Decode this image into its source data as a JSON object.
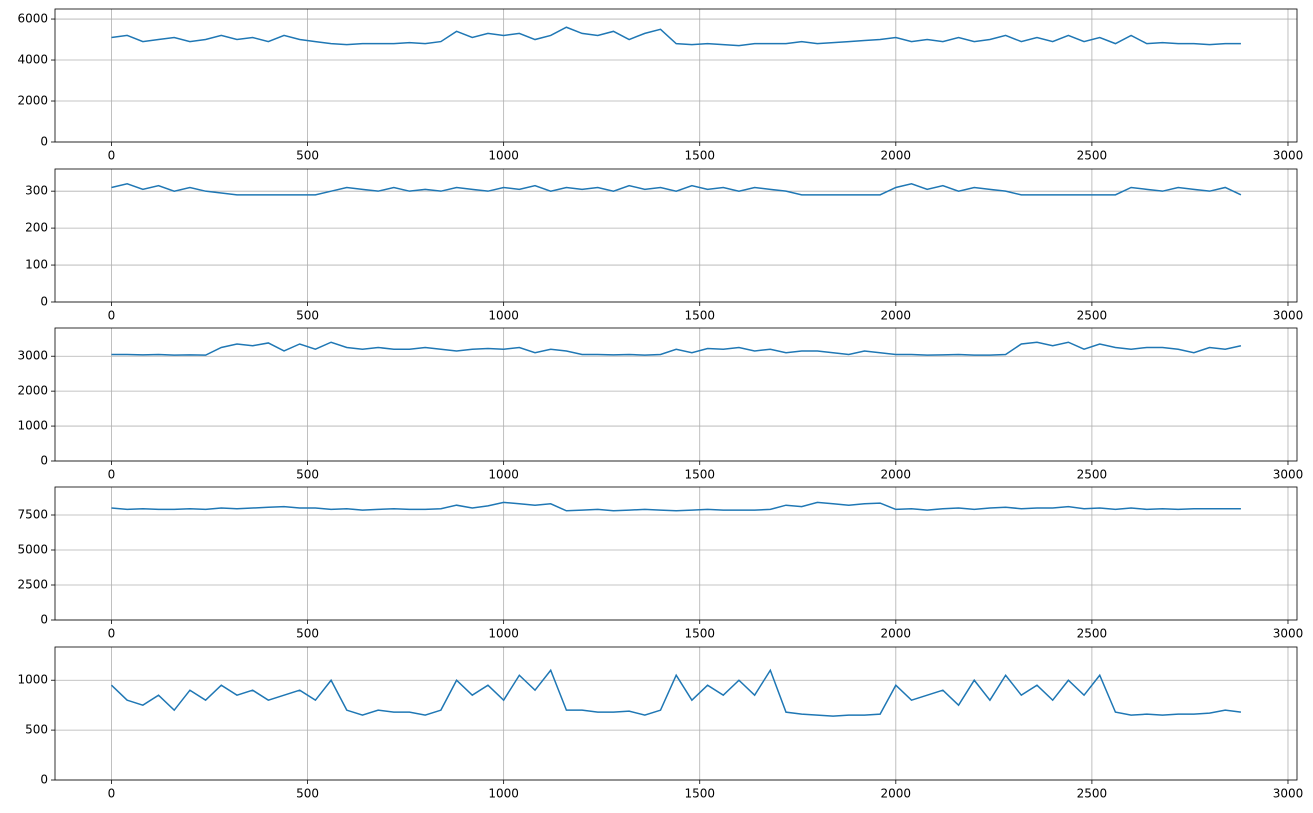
{
  "chart_data": [
    {
      "type": "line",
      "color": "#1f77b4",
      "grid": true,
      "xlim": [
        -144,
        3023
      ],
      "xticks": [
        0,
        500,
        1000,
        1500,
        2000,
        2500,
        3000
      ],
      "ylim": [
        0,
        6490
      ],
      "yticks": [
        0,
        2000,
        4000,
        6000
      ],
      "x": [
        0,
        40,
        80,
        120,
        160,
        200,
        240,
        280,
        320,
        360,
        400,
        440,
        480,
        520,
        560,
        600,
        640,
        680,
        720,
        760,
        800,
        840,
        880,
        920,
        960,
        1000,
        1040,
        1080,
        1120,
        1160,
        1200,
        1240,
        1280,
        1320,
        1360,
        1400,
        1440,
        1480,
        1520,
        1560,
        1600,
        1640,
        1680,
        1720,
        1760,
        1800,
        1840,
        1880,
        1920,
        1960,
        2000,
        2040,
        2080,
        2120,
        2160,
        2200,
        2240,
        2280,
        2320,
        2360,
        2400,
        2440,
        2480,
        2520,
        2560,
        2600,
        2640,
        2680,
        2720,
        2760,
        2800,
        2840,
        2880
      ],
      "values": [
        5100,
        5200,
        4900,
        5000,
        5100,
        4900,
        5000,
        5200,
        5000,
        5100,
        4900,
        5200,
        5000,
        4900,
        4800,
        4750,
        4800,
        4800,
        4800,
        4850,
        4800,
        4900,
        5400,
        5100,
        5300,
        5200,
        5300,
        5000,
        5200,
        5600,
        5300,
        5200,
        5400,
        5000,
        5300,
        5500,
        4800,
        4750,
        4800,
        4750,
        4700,
        4800,
        4800,
        4800,
        4900,
        4800,
        4850,
        4900,
        4950,
        5000,
        5100,
        4900,
        5000,
        4900,
        5100,
        4900,
        5000,
        5200,
        4900,
        5100,
        4900,
        5200,
        4900,
        5100,
        4800,
        5200,
        4800,
        4850,
        4800,
        4800,
        4750,
        4800,
        4800
      ]
    },
    {
      "type": "line",
      "color": "#1f77b4",
      "grid": true,
      "xlim": [
        -144,
        3023
      ],
      "xticks": [
        0,
        500,
        1000,
        1500,
        2000,
        2500,
        3000
      ],
      "ylim": [
        0,
        360
      ],
      "yticks": [
        0,
        100,
        200,
        300
      ],
      "x": [
        0,
        40,
        80,
        120,
        160,
        200,
        240,
        280,
        320,
        360,
        400,
        440,
        480,
        520,
        560,
        600,
        640,
        680,
        720,
        760,
        800,
        840,
        880,
        920,
        960,
        1000,
        1040,
        1080,
        1120,
        1160,
        1200,
        1240,
        1280,
        1320,
        1360,
        1400,
        1440,
        1480,
        1520,
        1560,
        1600,
        1640,
        1680,
        1720,
        1760,
        1800,
        1840,
        1880,
        1920,
        1960,
        2000,
        2040,
        2080,
        2120,
        2160,
        2200,
        2240,
        2280,
        2320,
        2360,
        2400,
        2440,
        2480,
        2520,
        2560,
        2600,
        2640,
        2680,
        2720,
        2760,
        2800,
        2840,
        2880
      ],
      "values": [
        310,
        320,
        305,
        315,
        300,
        310,
        300,
        295,
        290,
        290,
        290,
        290,
        290,
        290,
        300,
        310,
        305,
        300,
        310,
        300,
        305,
        300,
        310,
        305,
        300,
        310,
        305,
        315,
        300,
        310,
        305,
        310,
        300,
        315,
        305,
        310,
        300,
        315,
        305,
        310,
        300,
        310,
        305,
        300,
        290,
        290,
        290,
        290,
        290,
        290,
        310,
        320,
        305,
        315,
        300,
        310,
        305,
        300,
        290,
        290,
        290,
        290,
        290,
        290,
        290,
        310,
        305,
        300,
        310,
        305,
        300,
        310,
        290
      ]
    },
    {
      "type": "line",
      "color": "#1f77b4",
      "grid": true,
      "xlim": [
        -144,
        3023
      ],
      "xticks": [
        0,
        500,
        1000,
        1500,
        2000,
        2500,
        3000
      ],
      "ylim": [
        0,
        3808
      ],
      "yticks": [
        0,
        1000,
        2000,
        3000
      ],
      "x": [
        0,
        40,
        80,
        120,
        160,
        200,
        240,
        280,
        320,
        360,
        400,
        440,
        480,
        520,
        560,
        600,
        640,
        680,
        720,
        760,
        800,
        840,
        880,
        920,
        960,
        1000,
        1040,
        1080,
        1120,
        1160,
        1200,
        1240,
        1280,
        1320,
        1360,
        1400,
        1440,
        1480,
        1520,
        1560,
        1600,
        1640,
        1680,
        1720,
        1760,
        1800,
        1840,
        1880,
        1920,
        1960,
        2000,
        2040,
        2080,
        2120,
        2160,
        2200,
        2240,
        2280,
        2320,
        2360,
        2400,
        2440,
        2480,
        2520,
        2560,
        2600,
        2640,
        2680,
        2720,
        2760,
        2800,
        2840,
        2880
      ],
      "values": [
        3050,
        3050,
        3040,
        3050,
        3030,
        3040,
        3030,
        3250,
        3350,
        3300,
        3380,
        3150,
        3350,
        3200,
        3400,
        3250,
        3200,
        3250,
        3200,
        3200,
        3250,
        3200,
        3150,
        3200,
        3220,
        3200,
        3250,
        3100,
        3200,
        3150,
        3050,
        3050,
        3040,
        3050,
        3030,
        3050,
        3200,
        3100,
        3220,
        3200,
        3250,
        3150,
        3200,
        3100,
        3150,
        3150,
        3100,
        3050,
        3150,
        3100,
        3050,
        3050,
        3030,
        3040,
        3050,
        3030,
        3030,
        3050,
        3350,
        3400,
        3300,
        3400,
        3200,
        3350,
        3250,
        3200,
        3250,
        3250,
        3200,
        3100,
        3250,
        3200,
        3300
      ]
    },
    {
      "type": "line",
      "color": "#1f77b4",
      "grid": true,
      "xlim": [
        -144,
        3023
      ],
      "xticks": [
        0,
        500,
        1000,
        1500,
        2000,
        2500,
        3000
      ],
      "ylim": [
        0,
        9500
      ],
      "yticks": [
        0,
        2500,
        5000,
        7500
      ],
      "x": [
        0,
        40,
        80,
        120,
        160,
        200,
        240,
        280,
        320,
        360,
        400,
        440,
        480,
        520,
        560,
        600,
        640,
        680,
        720,
        760,
        800,
        840,
        880,
        920,
        960,
        1000,
        1040,
        1080,
        1120,
        1160,
        1200,
        1240,
        1280,
        1320,
        1360,
        1400,
        1440,
        1480,
        1520,
        1560,
        1600,
        1640,
        1680,
        1720,
        1760,
        1800,
        1840,
        1880,
        1920,
        1960,
        2000,
        2040,
        2080,
        2120,
        2160,
        2200,
        2240,
        2280,
        2320,
        2360,
        2400,
        2440,
        2480,
        2520,
        2560,
        2600,
        2640,
        2680,
        2720,
        2760,
        2800,
        2840,
        2880
      ],
      "values": [
        8000,
        7900,
        7950,
        7900,
        7900,
        7950,
        7900,
        8000,
        7950,
        8000,
        8050,
        8100,
        8000,
        8000,
        7900,
        7950,
        7850,
        7900,
        7950,
        7900,
        7900,
        7950,
        8200,
        8000,
        8150,
        8400,
        8300,
        8200,
        8300,
        7800,
        7850,
        7900,
        7800,
        7850,
        7900,
        7850,
        7800,
        7850,
        7900,
        7850,
        7850,
        7850,
        7900,
        8200,
        8100,
        8400,
        8300,
        8200,
        8300,
        8350,
        7900,
        7950,
        7850,
        7950,
        8000,
        7900,
        8000,
        8050,
        7950,
        8000,
        8000,
        8100,
        7950,
        8000,
        7900,
        8000,
        7900,
        7950,
        7900,
        7950,
        7950,
        7950,
        7950
      ]
    },
    {
      "type": "line",
      "color": "#1f77b4",
      "grid": true,
      "xlim": [
        -144,
        3023
      ],
      "xticks": [
        0,
        500,
        1000,
        1500,
        2000,
        2500,
        3000
      ],
      "ylim": [
        0,
        1333
      ],
      "yticks": [
        0,
        500,
        1000
      ],
      "x": [
        0,
        40,
        80,
        120,
        160,
        200,
        240,
        280,
        320,
        360,
        400,
        440,
        480,
        520,
        560,
        600,
        640,
        680,
        720,
        760,
        800,
        840,
        880,
        920,
        960,
        1000,
        1040,
        1080,
        1120,
        1160,
        1200,
        1240,
        1280,
        1320,
        1360,
        1400,
        1440,
        1480,
        1520,
        1560,
        1600,
        1640,
        1680,
        1720,
        1760,
        1800,
        1840,
        1880,
        1920,
        1960,
        2000,
        2040,
        2080,
        2120,
        2160,
        2200,
        2240,
        2280,
        2320,
        2360,
        2400,
        2440,
        2480,
        2520,
        2560,
        2600,
        2640,
        2680,
        2720,
        2760,
        2800,
        2840,
        2880
      ],
      "values": [
        950,
        800,
        750,
        850,
        700,
        900,
        800,
        950,
        850,
        900,
        800,
        850,
        900,
        800,
        1000,
        700,
        650,
        700,
        680,
        680,
        650,
        700,
        1000,
        850,
        950,
        800,
        1050,
        900,
        1100,
        700,
        700,
        680,
        680,
        690,
        650,
        700,
        1050,
        800,
        950,
        850,
        1000,
        850,
        1100,
        680,
        660,
        650,
        640,
        650,
        650,
        660,
        950,
        800,
        850,
        900,
        750,
        1000,
        800,
        1050,
        850,
        950,
        800,
        1000,
        850,
        1050,
        680,
        650,
        660,
        650,
        660,
        660,
        670,
        700,
        680
      ]
    }
  ]
}
